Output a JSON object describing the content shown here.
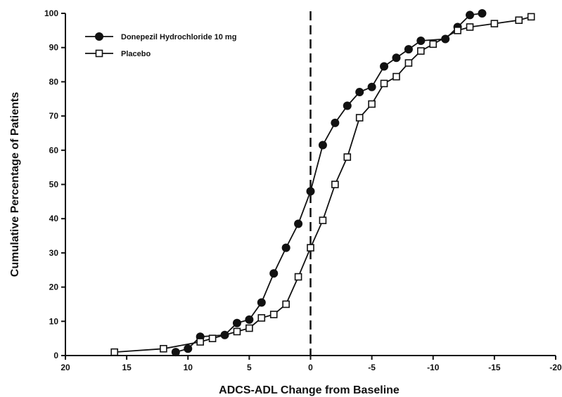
{
  "chart_data": {
    "type": "line",
    "title": "",
    "xlabel": "ADCS-ADL Change from Baseline",
    "ylabel": "Cumulative Percentage of Patients",
    "xlim": [
      20,
      -20
    ],
    "ylim": [
      0,
      100
    ],
    "x_ticks": [
      20,
      15,
      10,
      5,
      0,
      -5,
      -10,
      -15,
      -20
    ],
    "x_tick_labels": [
      "20",
      "15",
      "10",
      "5",
      "0",
      "-5",
      "-10",
      "-15",
      "-20"
    ],
    "y_ticks": [
      0,
      10,
      20,
      30,
      40,
      50,
      60,
      70,
      80,
      90,
      100
    ],
    "y_tick_labels": [
      "0",
      "10",
      "20",
      "30",
      "40",
      "50",
      "60",
      "70",
      "80",
      "90",
      "100"
    ],
    "reference_line": {
      "x": 0,
      "style": "dashed"
    },
    "grid": false,
    "legend_position": "top-left",
    "series": [
      {
        "name": "Donepezil Hydrochloride 10 mg",
        "marker": "filled-circle",
        "x": [
          11,
          10,
          9,
          7,
          6,
          5,
          4,
          3,
          2,
          1,
          0,
          -1,
          -2,
          -3,
          -4,
          -5,
          -6,
          -7,
          -8,
          -9,
          -11,
          -12,
          -13,
          -14
        ],
        "y": [
          1,
          2,
          5.5,
          6,
          9.5,
          10.5,
          15.5,
          24,
          31.5,
          38.5,
          48,
          61.5,
          68,
          73,
          77,
          78.5,
          84.5,
          87,
          89.5,
          92,
          92.5,
          96,
          99.5,
          100
        ]
      },
      {
        "name": "Placebo",
        "marker": "open-square",
        "x": [
          16,
          12,
          9,
          8,
          6,
          5,
          4,
          3,
          2,
          1,
          0,
          -1,
          -2,
          -3,
          -4,
          -5,
          -6,
          -7,
          -8,
          -9,
          -10,
          -12,
          -13,
          -15,
          -17,
          -18
        ],
        "y": [
          1,
          2,
          4,
          5,
          7,
          8,
          11,
          12,
          15,
          23,
          31.5,
          39.5,
          50,
          58,
          69.5,
          73.5,
          79.5,
          81.5,
          85.5,
          89,
          91,
          95,
          96,
          97,
          98,
          99
        ]
      }
    ]
  }
}
